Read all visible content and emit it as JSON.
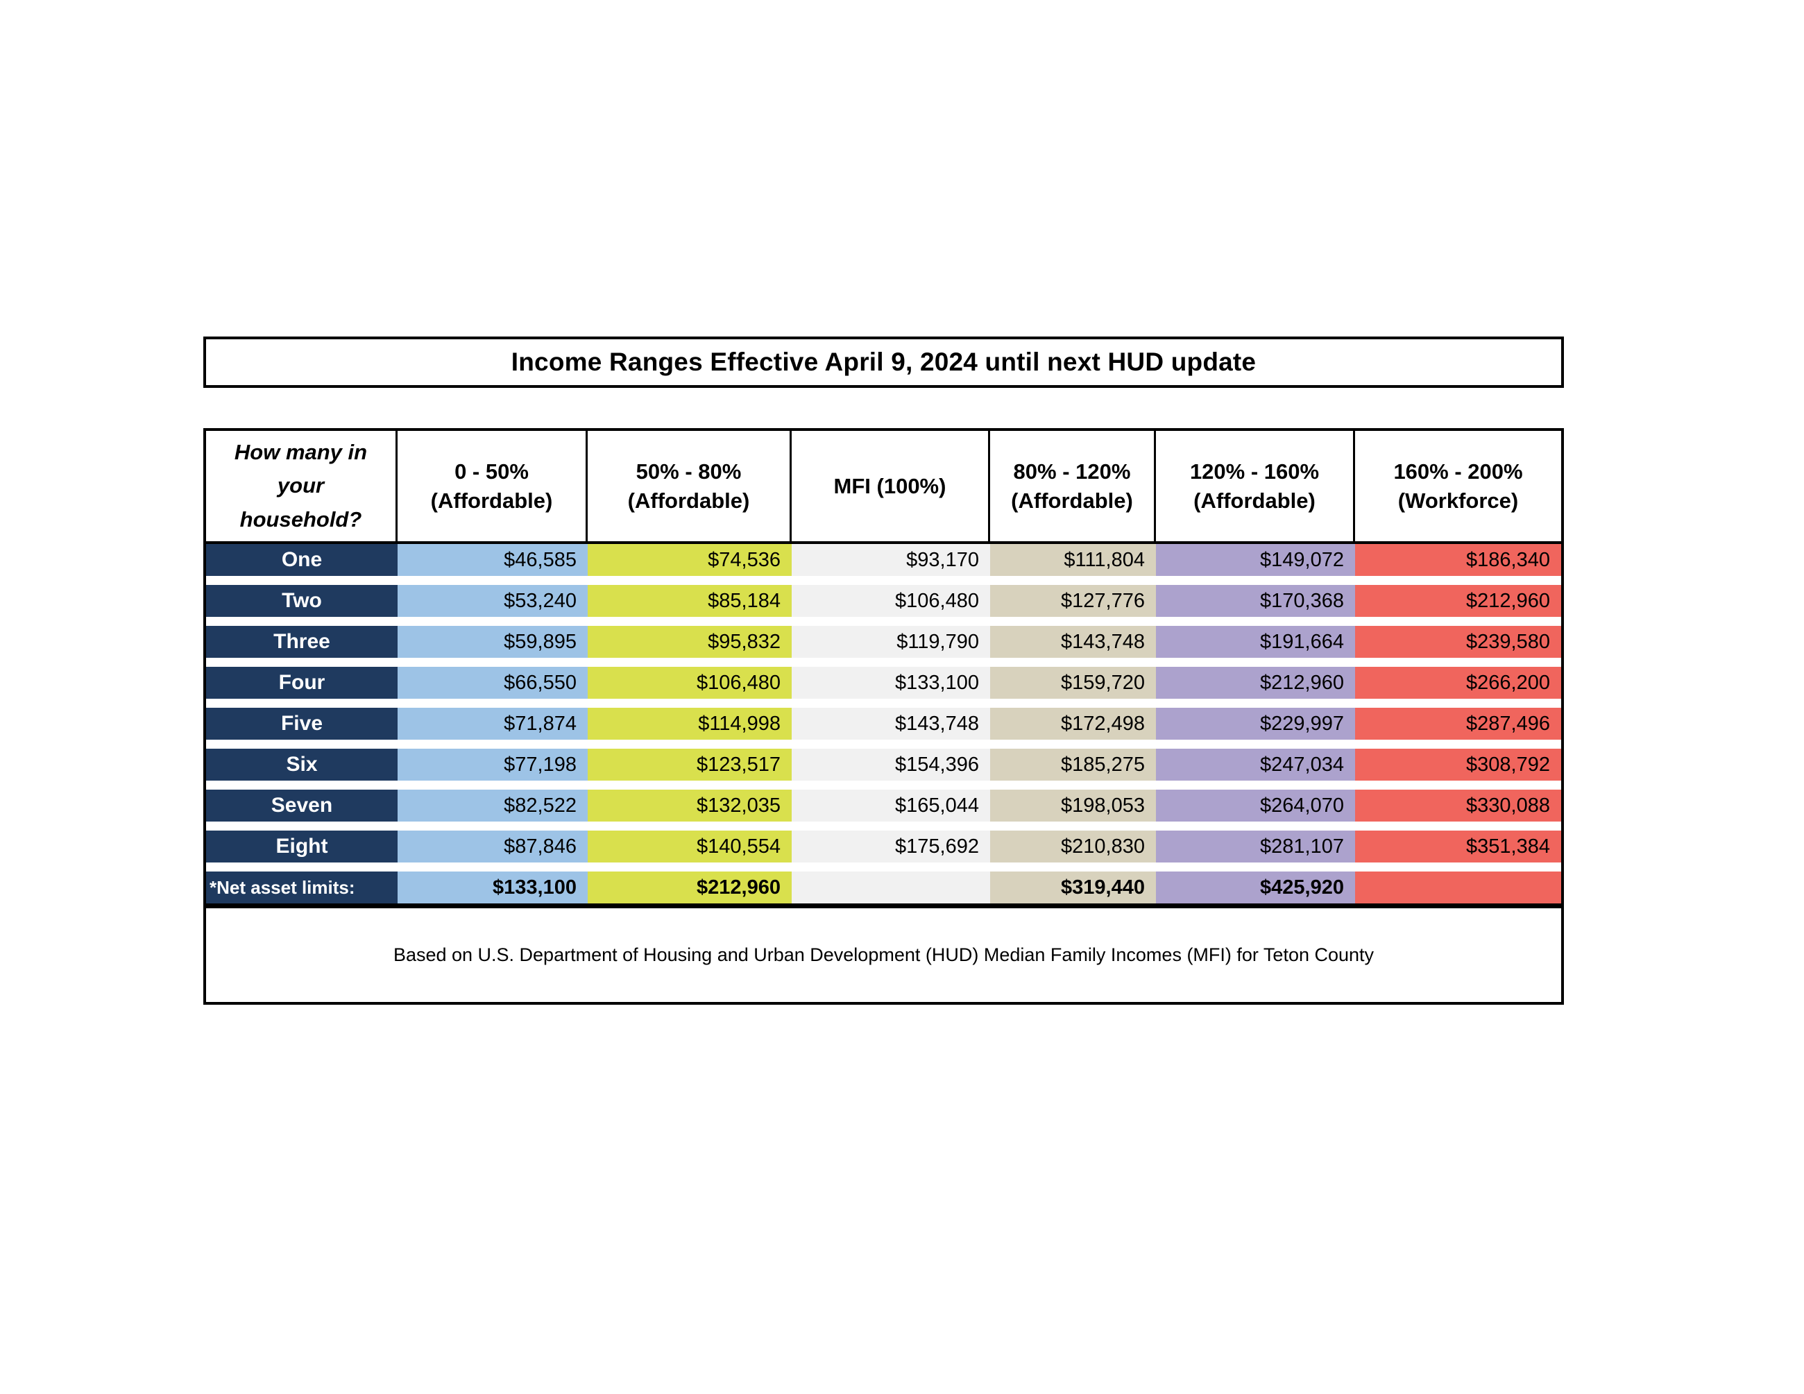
{
  "title": "Income Ranges Effective April 9, 2024 until next HUD update",
  "footer": "Based on U.S. Department of Housing and Urban Development (HUD) Median Family Incomes (MFI) for Teton County",
  "columns": [
    "How many in\nyour\nhousehold?",
    "0 - 50%\n(Affordable)",
    "50% - 80%\n(Affordable)",
    "MFI (100%)",
    "80% - 120%\n(Affordable)",
    "120% - 160%\n(Affordable)",
    "160% - 200%\n(Workforce)"
  ],
  "table": {
    "rows": [
      {
        "label": "One",
        "values": [
          "$46,585",
          "$74,536",
          "$93,170",
          "$111,804",
          "$149,072",
          "$186,340"
        ]
      },
      {
        "label": "Two",
        "values": [
          "$53,240",
          "$85,184",
          "$106,480",
          "$127,776",
          "$170,368",
          "$212,960"
        ]
      },
      {
        "label": "Three",
        "values": [
          "$59,895",
          "$95,832",
          "$119,790",
          "$143,748",
          "$191,664",
          "$239,580"
        ]
      },
      {
        "label": "Four",
        "values": [
          "$66,550",
          "$106,480",
          "$133,100",
          "$159,720",
          "$212,960",
          "$266,200"
        ]
      },
      {
        "label": "Five",
        "values": [
          "$71,874",
          "$114,998",
          "$143,748",
          "$172,498",
          "$229,997",
          "$287,496"
        ]
      },
      {
        "label": "Six",
        "values": [
          "$77,198",
          "$123,517",
          "$154,396",
          "$185,275",
          "$247,034",
          "$308,792"
        ]
      },
      {
        "label": "Seven",
        "values": [
          "$82,522",
          "$132,035",
          "$165,044",
          "$198,053",
          "$264,070",
          "$330,088"
        ]
      },
      {
        "label": "Eight",
        "values": [
          "$87,846",
          "$140,554",
          "$175,692",
          "$210,830",
          "$281,107",
          "$351,384"
        ]
      },
      {
        "label": "*Net asset limits:",
        "values": [
          "$133,100",
          "$212,960",
          "",
          "$319,440",
          "$425,920",
          ""
        ]
      }
    ]
  },
  "colors": {
    "row_label_navy": "#1f3a5f",
    "col_0_50_blue": "#9dc3e6",
    "col_50_80_yellow": "#d9e04d",
    "col_mfi_gray": "#f1f1f1",
    "col_80_120_tan": "#d8d2bd",
    "col_120_160_purple": "#aca2cd",
    "col_160_200_red": "#f0655d"
  }
}
